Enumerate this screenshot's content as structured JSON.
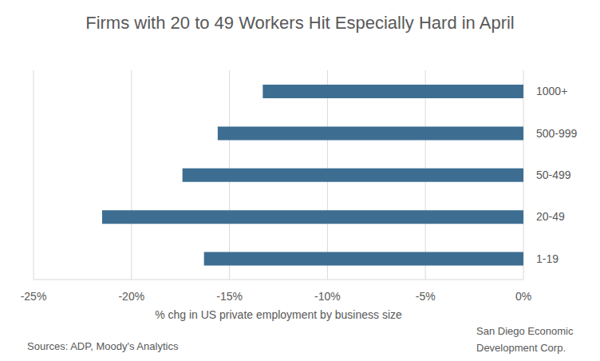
{
  "chart_data": {
    "type": "bar",
    "orientation": "horizontal",
    "title": "Firms with 20 to 49 Workers Hit Especially Hard in April",
    "xlabel": "% chg in US private employment by business size",
    "categories": [
      "1000+",
      "500-999",
      "50-499",
      "20-49",
      "1-19"
    ],
    "values": [
      -13.3,
      -15.6,
      -17.4,
      -21.5,
      -16.3
    ],
    "color": "#3d6e92",
    "xlim": [
      -25,
      0
    ],
    "xticks": [
      {
        "value": -25,
        "label": "-25%"
      },
      {
        "value": -20,
        "label": "-20%"
      },
      {
        "value": -15,
        "label": "-15%"
      },
      {
        "value": -10,
        "label": "-10%"
      },
      {
        "value": -5,
        "label": "-5%"
      },
      {
        "value": 0,
        "label": "0%"
      }
    ],
    "grid": true,
    "annotations": [
      "Sources: ADP, Moody's Analytics",
      "San Diego Economic Development Corp."
    ]
  }
}
